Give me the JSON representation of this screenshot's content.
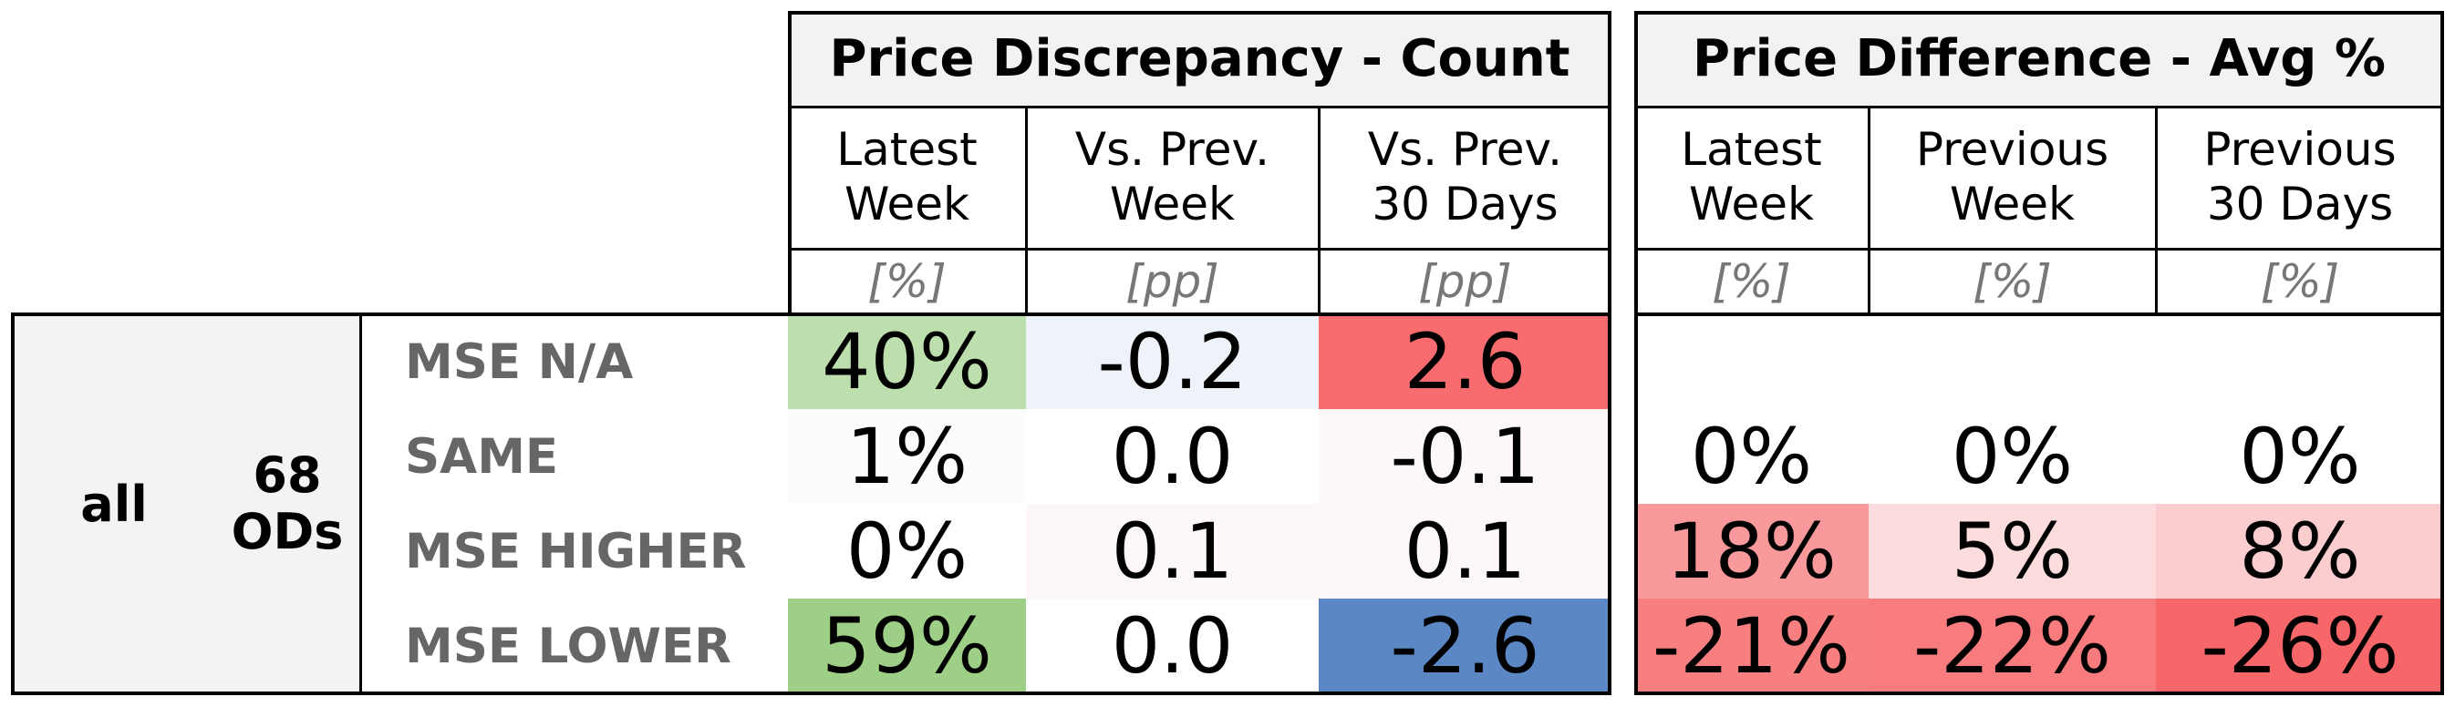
{
  "groups": [
    {
      "title": "Price Discrepancy - Count",
      "columns": [
        {
          "label": "Latest\nWeek",
          "unit": "[%]"
        },
        {
          "label": "Vs. Prev.\nWeek",
          "unit": "[pp]"
        },
        {
          "label": "Vs. Prev.\n30 Days",
          "unit": "[pp]"
        }
      ]
    },
    {
      "title": "Price Difference - Avg %",
      "columns": [
        {
          "label": "Latest\nWeek",
          "unit": "[%]"
        },
        {
          "label": "Previous\nWeek",
          "unit": "[%]"
        },
        {
          "label": "Previous\n30 Days",
          "unit": "[%]"
        }
      ]
    }
  ],
  "segment": {
    "name": "all",
    "count_label": "68\nODs"
  },
  "rows": [
    {
      "label": "MSE N/A",
      "count": [
        {
          "text": "40%",
          "bg": "#bddfae"
        },
        {
          "text": "-0.2",
          "bg": "#eef3f9"
        },
        {
          "text": "2.6",
          "bg": "#f86c6f"
        }
      ],
      "avg": [
        {
          "text": "",
          "bg": "#ffffff"
        },
        {
          "text": "",
          "bg": "#ffffff"
        },
        {
          "text": "",
          "bg": "#ffffff"
        }
      ]
    },
    {
      "label": "SAME",
      "count": [
        {
          "text": "1%",
          "bg": "#fdfcfc"
        },
        {
          "text": "0.0",
          "bg": "#ffffff"
        },
        {
          "text": "-0.1",
          "bg": "#fdf7f7"
        }
      ],
      "avg": [
        {
          "text": "0%",
          "bg": "#ffffff"
        },
        {
          "text": "0%",
          "bg": "#ffffff"
        },
        {
          "text": "0%",
          "bg": "#ffffff"
        }
      ]
    },
    {
      "label": "MSE HIGHER",
      "count": [
        {
          "text": "0%",
          "bg": "#ffffff"
        },
        {
          "text": "0.1",
          "bg": "#fdf7f7"
        },
        {
          "text": "0.1",
          "bg": "#fdf7f7"
        }
      ],
      "avg": [
        {
          "text": "18%",
          "bg": "#f9999b"
        },
        {
          "text": "5%",
          "bg": "#fcdcdd"
        },
        {
          "text": "8%",
          "bg": "#fbcdce"
        }
      ]
    },
    {
      "label": "MSE LOWER",
      "count": [
        {
          "text": "59%",
          "bg": "#9ecf86"
        },
        {
          "text": "0.0",
          "bg": "#ffffff"
        },
        {
          "text": "-2.6",
          "bg": "#5b87c5"
        }
      ],
      "avg": [
        {
          "text": "-21%",
          "bg": "#f87f80"
        },
        {
          "text": "-22%",
          "bg": "#f87b7d"
        },
        {
          "text": "-26%",
          "bg": "#f76668"
        }
      ]
    }
  ]
}
